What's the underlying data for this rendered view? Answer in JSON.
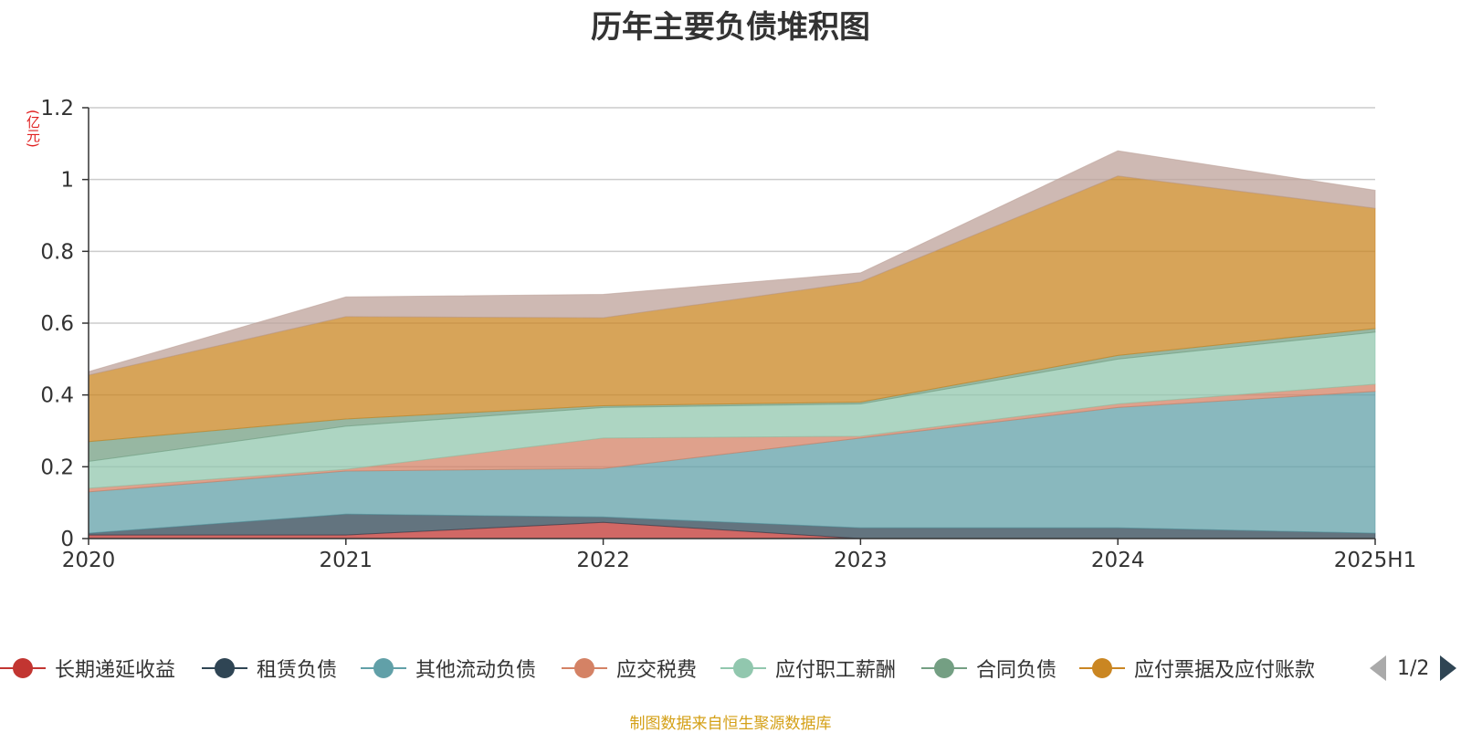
{
  "chart_data": {
    "type": "area",
    "title": "历年主要负债堆积图",
    "y_unit": "(亿元)",
    "categories": [
      "2020",
      "2021",
      "2022",
      "2023",
      "2024",
      "2025H1"
    ],
    "yticks": [
      "0",
      "0.2",
      "0.4",
      "0.6",
      "0.8",
      "1",
      "1.2"
    ],
    "ylim": [
      0,
      1.2
    ],
    "grid": true,
    "stacked": true,
    "legend_position": "bottom",
    "series": [
      {
        "name": "长期递延收益",
        "color": "#c23531",
        "values": [
          0.01,
          0.01,
          0.045,
          0.0,
          0.0,
          0.0
        ]
      },
      {
        "name": "租赁负债",
        "color": "#2f4554",
        "values": [
          0.005,
          0.058,
          0.015,
          0.03,
          0.03,
          0.015
        ]
      },
      {
        "name": "其他流动负债",
        "color": "#61a0a8",
        "values": [
          0.115,
          0.12,
          0.135,
          0.25,
          0.335,
          0.395
        ]
      },
      {
        "name": "应交税费",
        "color": "#d48265",
        "values": [
          0.01,
          0.005,
          0.085,
          0.005,
          0.01,
          0.02
        ]
      },
      {
        "name": "应付职工薪酬",
        "color": "#91c7ae",
        "values": [
          0.075,
          0.12,
          0.085,
          0.09,
          0.125,
          0.145
        ]
      },
      {
        "name": "合同负债",
        "color": "#749f83",
        "values": [
          0.055,
          0.02,
          0.005,
          0.005,
          0.01,
          0.01
        ]
      },
      {
        "name": "应付票据及应付账款",
        "color": "#ca8622",
        "values": [
          0.185,
          0.285,
          0.245,
          0.335,
          0.5,
          0.335
        ]
      },
      {
        "name": "",
        "color": "#bda29a",
        "values": [
          0.01,
          0.055,
          0.065,
          0.025,
          0.07,
          0.05
        ]
      }
    ]
  },
  "legend": {
    "items": [
      {
        "label": "长期递延收益",
        "color": "#c23531"
      },
      {
        "label": "租赁负债",
        "color": "#2f4554"
      },
      {
        "label": "其他流动负债",
        "color": "#61a0a8"
      },
      {
        "label": "应交税费",
        "color": "#d48265"
      },
      {
        "label": "应付职工薪酬",
        "color": "#91c7ae"
      },
      {
        "label": "合同负债",
        "color": "#749f83"
      },
      {
        "label": "应付票据及应付账款",
        "color": "#ca8622"
      }
    ],
    "pager": "1/2"
  },
  "source": "制图数据来自恒生聚源数据库"
}
